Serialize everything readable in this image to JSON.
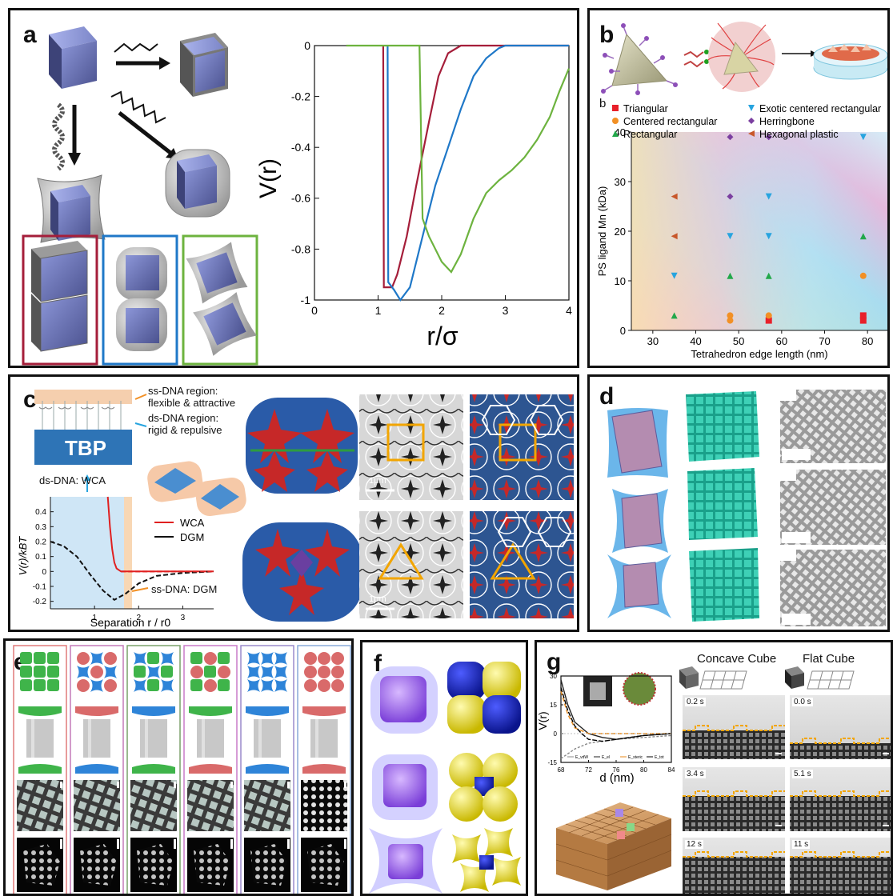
{
  "labels": {
    "a": "a",
    "b": "b",
    "c": "c",
    "d": "d",
    "e": "e",
    "f": "f",
    "g": "g"
  },
  "panel_b": {
    "legend_letter": "b"
  },
  "panel_c": {
    "ss_dna_text": "ss-DNA region:\nflexible & attractive",
    "ds_dna_text": "ds-DNA region:\nrigid & repulsive",
    "tbp": "TBP",
    "ds_wca": "ds-DNA: WCA",
    "ss_dgm": "ss-DNA: DGM",
    "scale_bar": "1μm"
  },
  "panel_g": {
    "concave_title": "Concave Cube",
    "flat_title": "Flat Cube",
    "concave_times": [
      "0.2 s",
      "3.4 s",
      "12 s"
    ],
    "flat_times": [
      "0.0 s",
      "5.1 s",
      "11 s"
    ]
  },
  "chart_data": [
    {
      "id": "a",
      "type": "line",
      "xlabel": "r/σ",
      "ylabel": "V(r)",
      "xlim": [
        0,
        4
      ],
      "ylim": [
        -1,
        0
      ],
      "xticks": [
        0,
        1,
        2,
        3,
        4
      ],
      "yticks": [
        0,
        -0.2,
        -0.4,
        -0.6,
        -0.8,
        -1
      ],
      "series": [
        {
          "color": "#a51e3a",
          "points": [
            [
              1.08,
              0
            ],
            [
              1.09,
              -0.95
            ],
            [
              1.22,
              -0.95
            ],
            [
              1.3,
              -0.9
            ],
            [
              1.45,
              -0.75
            ],
            [
              1.6,
              -0.55
            ],
            [
              1.8,
              -0.3
            ],
            [
              1.95,
              -0.12
            ],
            [
              2.1,
              -0.03
            ],
            [
              2.3,
              0
            ],
            [
              4,
              0
            ]
          ]
        },
        {
          "color": "#1f78c8",
          "points": [
            [
              1.15,
              0
            ],
            [
              1.16,
              -0.93
            ],
            [
              1.25,
              -0.96
            ],
            [
              1.35,
              -1.0
            ],
            [
              1.5,
              -0.95
            ],
            [
              1.7,
              -0.75
            ],
            [
              1.9,
              -0.55
            ],
            [
              2.1,
              -0.4
            ],
            [
              2.3,
              -0.25
            ],
            [
              2.5,
              -0.12
            ],
            [
              2.7,
              -0.05
            ],
            [
              2.9,
              -0.01
            ],
            [
              3.0,
              0
            ],
            [
              4,
              0
            ]
          ]
        },
        {
          "color": "#6db33f",
          "points": [
            [
              0.5,
              0
            ],
            [
              1.65,
              0
            ],
            [
              1.7,
              -0.68
            ],
            [
              1.8,
              -0.75
            ],
            [
              2.0,
              -0.85
            ],
            [
              2.15,
              -0.89
            ],
            [
              2.3,
              -0.82
            ],
            [
              2.5,
              -0.68
            ],
            [
              2.7,
              -0.58
            ],
            [
              2.9,
              -0.53
            ],
            [
              3.1,
              -0.49
            ],
            [
              3.3,
              -0.44
            ],
            [
              3.5,
              -0.37
            ],
            [
              3.7,
              -0.28
            ],
            [
              3.85,
              -0.18
            ],
            [
              4.0,
              -0.09
            ]
          ]
        }
      ]
    },
    {
      "id": "b",
      "type": "scatter",
      "xlabel": "Tetrahedron edge length (nm)",
      "ylabel": "PS ligand Mn (kDa)",
      "xlim": [
        25,
        85
      ],
      "ylim": [
        0,
        40
      ],
      "xticks": [
        30,
        40,
        50,
        60,
        70,
        80
      ],
      "yticks": [
        0,
        10,
        20,
        30,
        40
      ],
      "legend_position": "top",
      "series": [
        {
          "name": "Triangular",
          "marker": "square",
          "color": "#e8202a",
          "points": [
            [
              57,
              2
            ],
            [
              79,
              2
            ],
            [
              79,
              3
            ]
          ]
        },
        {
          "name": "Centered rectangular",
          "marker": "circle",
          "color": "#f29025",
          "points": [
            [
              48,
              2
            ],
            [
              48,
              3
            ],
            [
              57,
              3
            ],
            [
              79,
              11
            ]
          ]
        },
        {
          "name": "Rectangular",
          "marker": "triangle-up",
          "color": "#22a84a",
          "points": [
            [
              35,
              3
            ],
            [
              48,
              11
            ],
            [
              57,
              11
            ],
            [
              79,
              19
            ]
          ]
        },
        {
          "name": "Exotic centered rectangular",
          "marker": "triangle-down",
          "color": "#27a4df",
          "points": [
            [
              35,
              11
            ],
            [
              48,
              19
            ],
            [
              57,
              19
            ],
            [
              57,
              27
            ],
            [
              79,
              39
            ]
          ]
        },
        {
          "name": "Herringbone",
          "marker": "diamond",
          "color": "#7b3fa0",
          "points": [
            [
              48,
              27
            ],
            [
              48,
              39
            ],
            [
              57,
              39
            ]
          ]
        },
        {
          "name": "Hexagonal plastic",
          "marker": "triangle-left",
          "color": "#c8572a",
          "points": [
            [
              35,
              19
            ],
            [
              35,
              27
            ]
          ]
        }
      ]
    },
    {
      "id": "c",
      "type": "line",
      "xlabel": "Separation r / r0",
      "ylabel": "V(r)/kBT",
      "xlim": [
        0,
        3.7
      ],
      "ylim": [
        -0.25,
        0.5
      ],
      "xticks": [
        1,
        2,
        3
      ],
      "yticks": [
        0.4,
        0.3,
        0.2,
        0.1,
        0,
        -0.1,
        -0.2
      ],
      "series": [
        {
          "name": "WCA",
          "color": "#e02020",
          "points": [
            [
              1.3,
              0.5
            ],
            [
              1.35,
              0.3
            ],
            [
              1.4,
              0.15
            ],
            [
              1.45,
              0.06
            ],
            [
              1.5,
              0.02
            ],
            [
              1.6,
              0
            ],
            [
              3.7,
              0
            ]
          ]
        },
        {
          "name": "DGM",
          "color": "#111111",
          "points": [
            [
              0,
              0.2
            ],
            [
              0.3,
              0.17
            ],
            [
              0.6,
              0.1
            ],
            [
              0.9,
              -0.02
            ],
            [
              1.2,
              -0.13
            ],
            [
              1.45,
              -0.19
            ],
            [
              1.7,
              -0.15
            ],
            [
              2.0,
              -0.08
            ],
            [
              2.4,
              -0.03
            ],
            [
              3.0,
              -0.01
            ],
            [
              3.7,
              0
            ]
          ]
        }
      ]
    },
    {
      "id": "g",
      "type": "line",
      "xlabel": "d (nm)",
      "ylabel": "V(r)",
      "xlim": [
        68,
        84
      ],
      "ylim": [
        -15,
        30
      ],
      "xticks": [
        68,
        72,
        76,
        80,
        84
      ],
      "yticks": [
        30,
        15,
        0,
        -15
      ],
      "series": [
        {
          "name": "E_vdW",
          "color": "#888888",
          "points": [
            [
              68,
              -13
            ],
            [
              70,
              -8
            ],
            [
              72,
              -5
            ],
            [
              76,
              -3
            ],
            [
              80,
              -2
            ],
            [
              84,
              -1
            ]
          ]
        },
        {
          "name": "E_el",
          "color": "#222222",
          "points": [
            [
              68,
              28
            ],
            [
              69,
              15
            ],
            [
              70,
              6
            ],
            [
              72,
              0
            ],
            [
              74,
              -2
            ],
            [
              76,
              -3
            ],
            [
              80,
              -1
            ],
            [
              84,
              0
            ]
          ]
        },
        {
          "name": "E_steric",
          "color": "#e88a1a",
          "points": [
            [
              68,
              22
            ],
            [
              69,
              10
            ],
            [
              70,
              3
            ],
            [
              72,
              0
            ],
            [
              84,
              0
            ]
          ]
        },
        {
          "name": "E_tot",
          "color": "#000000",
          "points": [
            [
              68,
              24
            ],
            [
              69,
              12
            ],
            [
              70,
              4
            ],
            [
              71,
              0
            ],
            [
              72,
              -3
            ],
            [
              74,
              -4
            ],
            [
              76,
              -3
            ],
            [
              80,
              -1
            ],
            [
              84,
              0
            ]
          ]
        }
      ]
    }
  ]
}
